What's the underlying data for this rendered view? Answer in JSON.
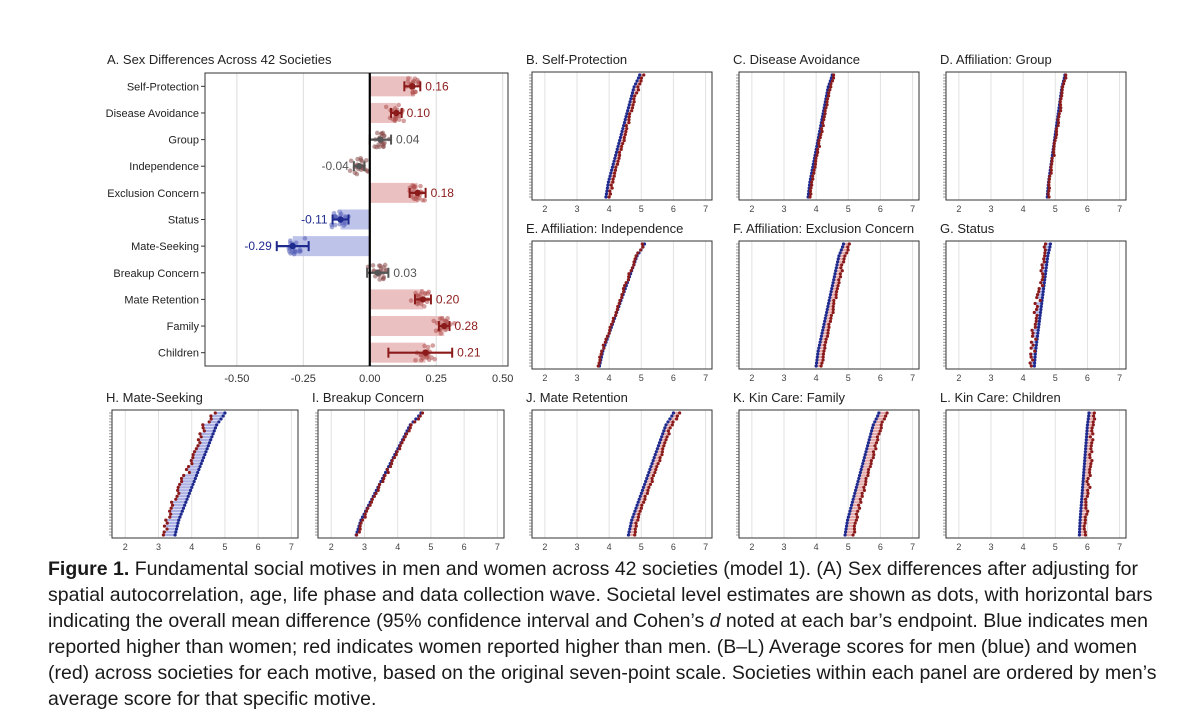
{
  "colors": {
    "male": "#1f2a8f",
    "female": "#8b1a1a",
    "male_fill": "#b3b8e6",
    "female_fill": "#e8b5b5",
    "neutral": "#555555"
  },
  "chart_data": [
    {
      "id": "A",
      "type": "bar",
      "title": "A. Sex Differences Across 42 Societies",
      "categories": [
        "Self-Protection",
        "Disease Avoidance",
        "Group",
        "Independence",
        "Exclusion Concern",
        "Status",
        "Mate-Seeking",
        "Breakup Concern",
        "Mate Retention",
        "Family",
        "Children"
      ],
      "values": [
        0.16,
        0.1,
        0.04,
        -0.04,
        0.18,
        -0.11,
        -0.29,
        0.03,
        0.2,
        0.28,
        0.21
      ],
      "value_labels": [
        "0.16",
        "0.10",
        "0.04",
        "-0.04",
        "0.18",
        "-0.11",
        "-0.29",
        "0.03",
        "0.20",
        "0.28",
        "0.21"
      ],
      "ci_low": [
        0.13,
        0.08,
        0.0,
        -0.06,
        0.15,
        -0.14,
        -0.35,
        -0.01,
        0.17,
        0.26,
        0.07
      ],
      "ci_high": [
        0.19,
        0.12,
        0.08,
        -0.02,
        0.21,
        -0.08,
        -0.23,
        0.07,
        0.23,
        0.3,
        0.31
      ],
      "significant": [
        true,
        true,
        false,
        false,
        true,
        true,
        true,
        false,
        true,
        true,
        true
      ],
      "xlim": [
        -0.62,
        0.52
      ],
      "xticks": [
        "-0.50",
        "-0.25",
        "0.00",
        "0.25",
        "0.50"
      ],
      "xtick_values": [
        -0.5,
        -0.25,
        0,
        0.25,
        0.5
      ]
    },
    {
      "id": "B",
      "type": "scatter",
      "title": "B. Self-Protection",
      "men_min": 3.9,
      "men_max": 4.95,
      "gap": 0.12,
      "noise": 0.05,
      "xlim": [
        1.6,
        7.2
      ],
      "xticks": [
        "2",
        "3",
        "4",
        "5",
        "6",
        "7"
      ]
    },
    {
      "id": "C",
      "type": "scatter",
      "title": "C. Disease Avoidance",
      "men_min": 3.75,
      "men_max": 4.5,
      "gap": 0.06,
      "noise": 0.03,
      "xlim": [
        1.6,
        7.2
      ],
      "xticks": [
        "2",
        "3",
        "4",
        "5",
        "6",
        "7"
      ]
    },
    {
      "id": "D",
      "type": "scatter",
      "title": "D. Affiliation: Group",
      "men_min": 4.75,
      "men_max": 5.3,
      "gap": 0.03,
      "noise": 0.04,
      "xlim": [
        1.6,
        7.2
      ],
      "xticks": [
        "2",
        "3",
        "4",
        "5",
        "6",
        "7"
      ]
    },
    {
      "id": "E",
      "type": "scatter",
      "title": "E. Affiliation: Independence",
      "men_min": 3.7,
      "men_max": 5.1,
      "gap": -0.03,
      "noise": 0.05,
      "xlim": [
        1.6,
        7.2
      ],
      "xticks": [
        "2",
        "3",
        "4",
        "5",
        "6",
        "7"
      ]
    },
    {
      "id": "F",
      "type": "scatter",
      "title": "F. Affiliation: Exclusion Concern",
      "men_min": 4.0,
      "men_max": 4.85,
      "gap": 0.18,
      "noise": 0.05,
      "xlim": [
        1.6,
        7.2
      ],
      "xticks": [
        "2",
        "3",
        "4",
        "5",
        "6",
        "7"
      ]
    },
    {
      "id": "G",
      "type": "scatter",
      "title": "G. Status",
      "men_min": 4.35,
      "men_max": 4.85,
      "gap": -0.12,
      "noise": 0.12,
      "xlim": [
        1.6,
        7.2
      ],
      "xticks": [
        "2",
        "3",
        "4",
        "5",
        "6",
        "7"
      ]
    },
    {
      "id": "H",
      "type": "scatter",
      "title": "H. Mate-Seeking",
      "men_min": 3.5,
      "men_max": 5.0,
      "gap": -0.35,
      "noise": 0.13,
      "xlim": [
        1.6,
        7.2
      ],
      "xticks": [
        "2",
        "3",
        "4",
        "5",
        "6",
        "7"
      ]
    },
    {
      "id": "I",
      "type": "scatter",
      "title": "I. Breakup Concern",
      "men_min": 2.75,
      "men_max": 4.7,
      "gap": 0.04,
      "noise": 0.06,
      "xlim": [
        1.6,
        7.2
      ],
      "xticks": [
        "2",
        "3",
        "4",
        "5",
        "6",
        "7"
      ]
    },
    {
      "id": "J",
      "type": "scatter",
      "title": "J. Mate Retention",
      "men_min": 4.6,
      "men_max": 6.0,
      "gap": 0.18,
      "noise": 0.05,
      "xlim": [
        1.6,
        7.2
      ],
      "xticks": [
        "2",
        "3",
        "4",
        "5",
        "6",
        "7"
      ]
    },
    {
      "id": "K",
      "type": "scatter",
      "title": "K. Kin Care: Family",
      "men_min": 4.9,
      "men_max": 5.95,
      "gap": 0.25,
      "noise": 0.05,
      "xlim": [
        1.6,
        7.2
      ],
      "xticks": [
        "2",
        "3",
        "4",
        "5",
        "6",
        "7"
      ]
    },
    {
      "id": "L",
      "type": "scatter",
      "title": "L. Kin Care: Children",
      "men_min": 5.75,
      "men_max": 6.05,
      "gap": 0.17,
      "noise": 0.08,
      "xlim": [
        1.6,
        7.2
      ],
      "xticks": [
        "2",
        "3",
        "4",
        "5",
        "6",
        "7"
      ]
    }
  ],
  "caption": {
    "label": "Figure 1.",
    "part1": " Fundamental social motives in men and women across 42 societies (model 1). (A) Sex differences after adjusting for spatial autocorrelation, age, life phase and data collection wave. Societal level estimates are shown as dots, with horizontal bars indicating the overall mean difference (95% confidence interval and Cohen’s ",
    "d_symbol": "d",
    "part2": " noted at each bar’s endpoint. Blue indicates men reported higher than women; red indicates women reported higher than men. (B–L) Average scores for men (blue) and women (red) across societies for each motive, based on the original seven-point scale. Societies within each panel are ordered by men’s average score for that specific motive."
  }
}
